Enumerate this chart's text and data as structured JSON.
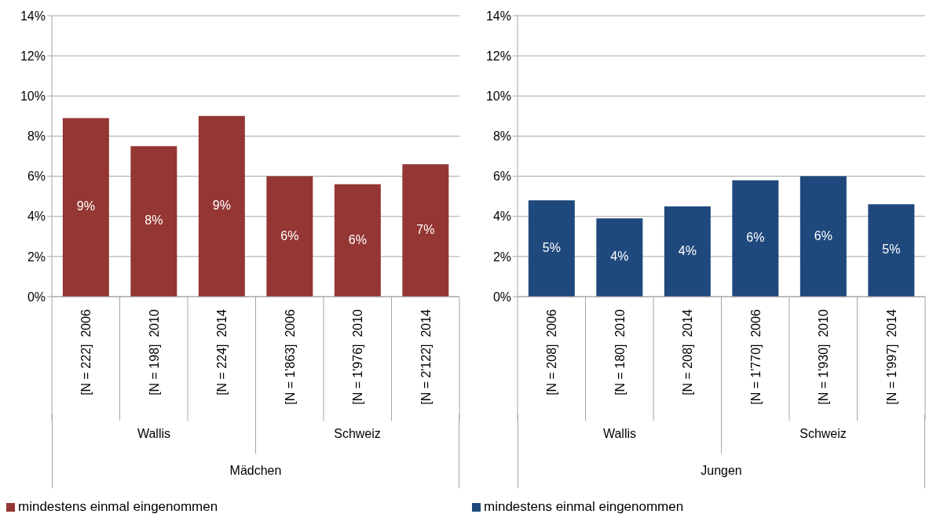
{
  "chart_data": [
    {
      "type": "bar",
      "categories": [
        "[N = 222]  2006",
        "[N = 198]  2010",
        "[N = 224]  2014",
        "[N = 1'863]  2006",
        "[N = 1'976]  2010",
        "[N = 2'122]  2014"
      ],
      "series": [
        {
          "name": "mindestens einmal eingenommen",
          "color": "#943634",
          "values": [
            8.9,
            7.5,
            9.0,
            6.0,
            5.6,
            6.6
          ],
          "value_labels": [
            "9%",
            "8%",
            "9%",
            "6%",
            "6%",
            "7%"
          ]
        }
      ],
      "ylim": [
        0,
        14
      ],
      "yticks": [
        {
          "value": 0,
          "label": "0%"
        },
        {
          "value": 2,
          "label": "2%"
        },
        {
          "value": 4,
          "label": "4%"
        },
        {
          "value": 6,
          "label": "6%"
        },
        {
          "value": 8,
          "label": "8%"
        },
        {
          "value": 10,
          "label": "10%"
        },
        {
          "value": 12,
          "label": "12%"
        },
        {
          "value": 14,
          "label": "14%"
        }
      ],
      "grid": "y",
      "legend": "bottom",
      "annotations": [
        "Wallis",
        "Schweiz",
        "Mädchen"
      ]
    },
    {
      "type": "bar",
      "categories": [
        "[N = 208]  2006",
        "[N = 180]  2010",
        "[N = 208]  2014",
        "[N = 1'770]  2006",
        "[N = 1'930]  2010",
        "[N = 1'997]  2014"
      ],
      "series": [
        {
          "name": "mindestens einmal eingenommen",
          "color": "#1f497d",
          "values": [
            4.8,
            3.9,
            4.5,
            5.8,
            6.0,
            4.6
          ],
          "value_labels": [
            "5%",
            "4%",
            "4%",
            "6%",
            "6%",
            "5%"
          ]
        }
      ],
      "ylim": [
        0,
        14
      ],
      "yticks": [
        {
          "value": 0,
          "label": "0%"
        },
        {
          "value": 2,
          "label": "2%"
        },
        {
          "value": 4,
          "label": "4%"
        },
        {
          "value": 6,
          "label": "6%"
        },
        {
          "value": 8,
          "label": "8%"
        },
        {
          "value": 10,
          "label": "10%"
        },
        {
          "value": 12,
          "label": "12%"
        },
        {
          "value": 14,
          "label": "14%"
        }
      ],
      "grid": "y",
      "legend": "bottom",
      "annotations": [
        "Wallis",
        "Schweiz",
        "Jungen"
      ]
    }
  ]
}
